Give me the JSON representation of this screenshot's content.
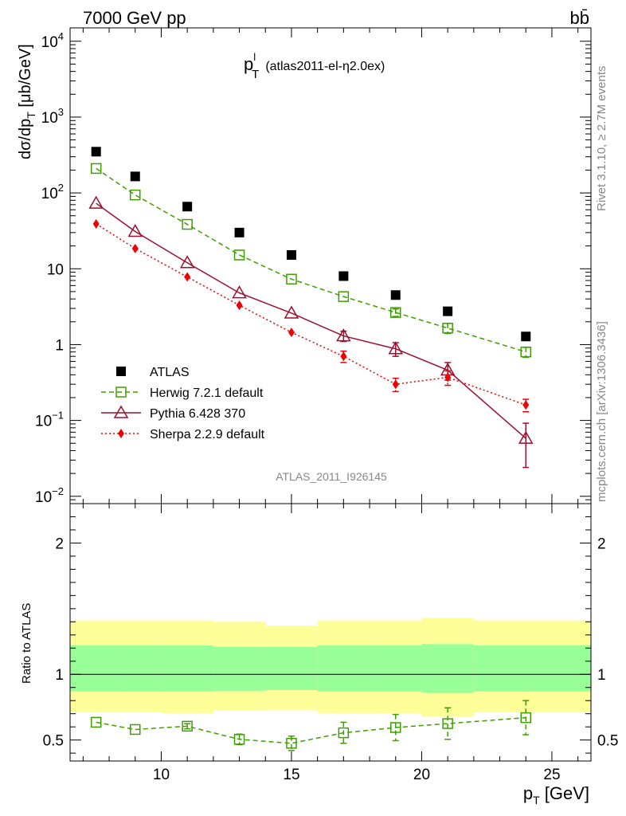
{
  "header": {
    "energy_label": "7000 GeV pp",
    "process_label": "bb̄"
  },
  "plot_title": {
    "main": "p",
    "sup": "l",
    "sub": "T",
    "tag": "(atlas2011-el-η2.0ex)"
  },
  "side_labels": {
    "rivet": "Rivet 3.1.10, ≥ 2.7M events",
    "mcplots": "mcplots.cern.ch [arXiv:1306.3436]"
  },
  "analysis_label": "ATLAS_2011_I926145",
  "chart_data": [
    {
      "type": "scatter",
      "ylabel": "dσ/dp_T [μb/GeV]",
      "yscale": "log",
      "ylim": [
        0.008,
        15000
      ],
      "xlim": [
        6.5,
        26.5
      ],
      "ytick_labels": [
        "10^-2",
        "10^-1",
        "1",
        "10",
        "10^2",
        "10^3",
        "10^4"
      ],
      "legend": "inside, lower-left",
      "series": [
        {
          "name": "ATLAS",
          "color": "#000000",
          "marker": "filled-square",
          "x": [
            7.5,
            9,
            11,
            13,
            15,
            17,
            19,
            21,
            24
          ],
          "y": [
            350,
            165,
            66,
            30,
            15.2,
            8.0,
            4.5,
            2.75,
            1.28
          ]
        },
        {
          "name": "Herwig 7.2.1 default",
          "color": "#3f9f00",
          "marker": "open-square",
          "line": "dashed",
          "x": [
            7.5,
            9,
            11,
            13,
            15,
            17,
            19,
            21,
            24
          ],
          "y": [
            210,
            94,
            38.5,
            15.2,
            7.3,
            4.3,
            2.65,
            1.65,
            0.8
          ],
          "err": [
            0,
            0,
            0,
            0,
            0,
            0,
            0.3,
            0.25,
            0.12
          ]
        },
        {
          "name": "Pythia 6.428 370",
          "color": "#9f0f2f",
          "marker": "open-triangle",
          "line": "solid",
          "x": [
            7.5,
            9,
            11,
            13,
            15,
            17,
            19,
            21,
            24
          ],
          "y": [
            73,
            31,
            12,
            4.8,
            2.6,
            1.3,
            0.88,
            0.46,
            0.058
          ],
          "err": [
            0,
            0,
            0,
            0,
            0,
            0.2,
            0.18,
            0.12,
            0.034
          ]
        },
        {
          "name": "Sherpa 2.2.9 default",
          "color": "#ee0000",
          "marker": "filled-diamond",
          "line": "dotted",
          "x": [
            7.5,
            9,
            11,
            13,
            15,
            17,
            19,
            21,
            24
          ],
          "y": [
            39,
            18.5,
            7.8,
            3.3,
            1.45,
            0.7,
            0.3,
            0.37,
            0.16
          ],
          "err": [
            0,
            0,
            0,
            0,
            0,
            0.12,
            0.06,
            0.08,
            0.03
          ]
        }
      ]
    },
    {
      "type": "scatter",
      "ylabel": "Ratio to ATLAS",
      "xlabel": "p_T [GeV]",
      "xlim": [
        6.5,
        26.5
      ],
      "ylim": [
        0.34,
        2.3
      ],
      "xtick_labels": [
        "10",
        "15",
        "20",
        "25"
      ],
      "ytick_labels": [
        "0.5",
        "1",
        "2"
      ],
      "bands": [
        {
          "x0": 6.5,
          "x1": 8.5,
          "yel_lo": 0.71,
          "yel_hi": 1.41,
          "grn_lo": 0.87,
          "grn_hi": 1.22
        },
        {
          "x0": 8.5,
          "x1": 10,
          "yel_lo": 0.71,
          "yel_hi": 1.41,
          "grn_lo": 0.87,
          "grn_hi": 1.22
        },
        {
          "x0": 10,
          "x1": 12,
          "yel_lo": 0.705,
          "yel_hi": 1.41,
          "grn_lo": 0.87,
          "grn_hi": 1.22
        },
        {
          "x0": 12,
          "x1": 14,
          "yel_lo": 0.725,
          "yel_hi": 1.4,
          "grn_lo": 0.875,
          "grn_hi": 1.21
        },
        {
          "x0": 14,
          "x1": 16,
          "yel_lo": 0.73,
          "yel_hi": 1.37,
          "grn_lo": 0.88,
          "grn_hi": 1.21
        },
        {
          "x0": 16,
          "x1": 18,
          "yel_lo": 0.705,
          "yel_hi": 1.41,
          "grn_lo": 0.87,
          "grn_hi": 1.22
        },
        {
          "x0": 18,
          "x1": 20,
          "yel_lo": 0.705,
          "yel_hi": 1.41,
          "grn_lo": 0.87,
          "grn_hi": 1.22
        },
        {
          "x0": 20,
          "x1": 22,
          "yel_lo": 0.68,
          "yel_hi": 1.43,
          "grn_lo": 0.86,
          "grn_hi": 1.23
        },
        {
          "x0": 22,
          "x1": 26.5,
          "yel_lo": 0.71,
          "yel_hi": 1.41,
          "grn_lo": 0.87,
          "grn_hi": 1.22
        }
      ],
      "series": [
        {
          "name": "Herwig 7.2.1 default",
          "color": "#3f9f00",
          "marker": "open-square",
          "line": "dashed",
          "x": [
            7.5,
            9,
            11,
            13,
            15,
            17,
            19,
            21,
            24
          ],
          "y": [
            0.635,
            0.58,
            0.605,
            0.505,
            0.475,
            0.555,
            0.595,
            0.625,
            0.67
          ],
          "err": [
            0,
            0,
            0.02,
            0.04,
            0.055,
            0.08,
            0.1,
            0.12,
            0.13
          ]
        }
      ]
    }
  ]
}
